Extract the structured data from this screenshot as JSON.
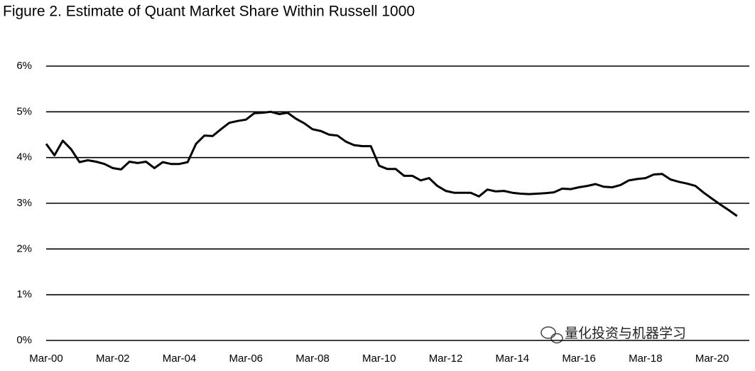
{
  "chart_data": {
    "type": "line",
    "title": "Figure 2. Estimate of Quant Market Share Within Russell 1000",
    "watermark": "量化投资与机器学习",
    "categories": [
      "Mar-00",
      null,
      null,
      null,
      null,
      null,
      null,
      null,
      "Mar-02",
      null,
      null,
      null,
      null,
      null,
      null,
      null,
      "Mar-04",
      null,
      null,
      null,
      null,
      null,
      null,
      null,
      "Mar-06",
      null,
      null,
      null,
      null,
      null,
      null,
      null,
      "Mar-08",
      null,
      null,
      null,
      null,
      null,
      null,
      null,
      "Mar-10",
      null,
      null,
      null,
      null,
      null,
      null,
      null,
      "Mar-12",
      null,
      null,
      null,
      null,
      null,
      null,
      null,
      "Mar-14",
      null,
      null,
      null,
      null,
      null,
      null,
      null,
      "Mar-16",
      null,
      null,
      null,
      null,
      null,
      null,
      null,
      "Mar-18",
      null,
      null,
      null,
      null,
      null,
      null,
      null,
      "Mar-20",
      null,
      null,
      null
    ],
    "series": [
      {
        "name": "Quant market share",
        "color": "#000000",
        "values": [
          4.3,
          4.05,
          4.37,
          4.18,
          3.9,
          3.94,
          3.91,
          3.86,
          3.77,
          3.74,
          3.91,
          3.88,
          3.91,
          3.77,
          3.9,
          3.86,
          3.86,
          3.9,
          4.3,
          4.48,
          4.47,
          4.62,
          4.76,
          4.8,
          4.83,
          4.97,
          4.98,
          5.0,
          4.95,
          4.98,
          4.85,
          4.75,
          4.62,
          4.58,
          4.5,
          4.48,
          4.35,
          4.27,
          4.25,
          4.25,
          3.82,
          3.75,
          3.75,
          3.6,
          3.6,
          3.5,
          3.55,
          3.38,
          3.27,
          3.23,
          3.23,
          3.23,
          3.15,
          3.3,
          3.26,
          3.27,
          3.23,
          3.21,
          3.2,
          3.21,
          3.22,
          3.24,
          3.32,
          3.31,
          3.35,
          3.38,
          3.42,
          3.36,
          3.35,
          3.4,
          3.5,
          3.53,
          3.55,
          3.63,
          3.64,
          3.52,
          3.47,
          3.43,
          3.38,
          3.23,
          3.1,
          2.97,
          2.85,
          2.72
        ]
      }
    ],
    "ylim": [
      0,
      6
    ],
    "yticks": [
      {
        "value": 0,
        "label": "0%"
      },
      {
        "value": 1,
        "label": "1%"
      },
      {
        "value": 2,
        "label": "2%"
      },
      {
        "value": 3,
        "label": "3%"
      },
      {
        "value": 4,
        "label": "4%"
      },
      {
        "value": 5,
        "label": "5%"
      },
      {
        "value": 6,
        "label": "6%"
      }
    ],
    "grid": true
  }
}
